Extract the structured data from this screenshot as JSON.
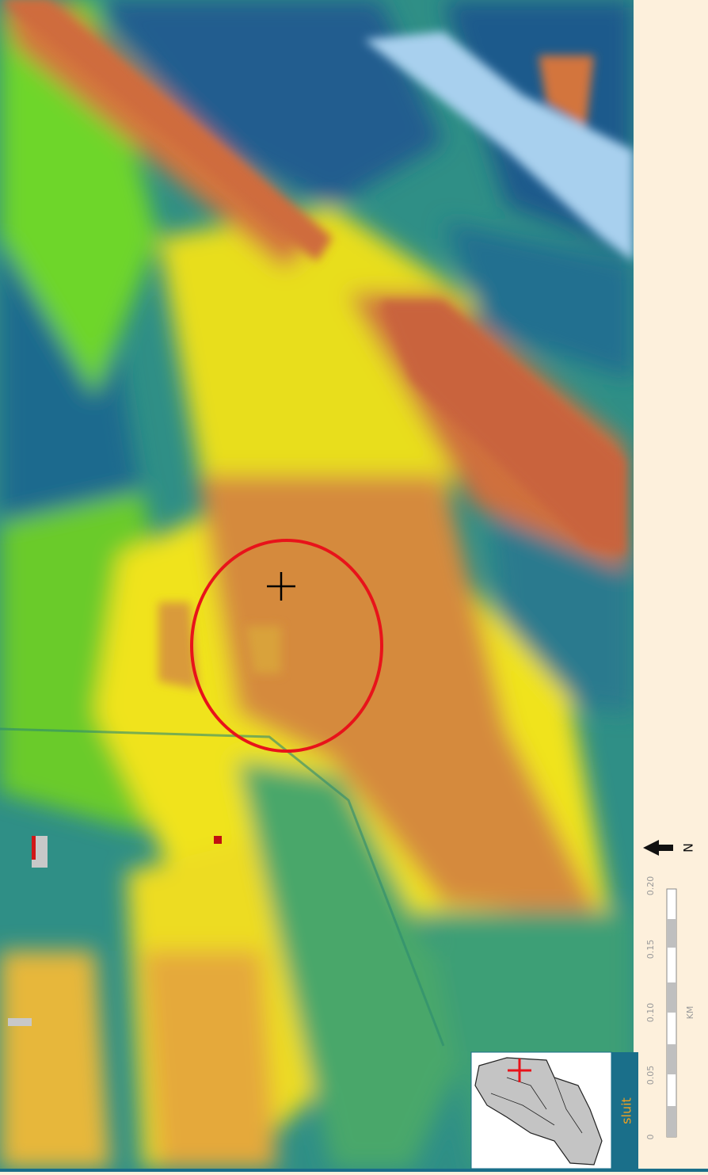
{
  "scale_bar": {
    "ticks": [
      "0",
      "0.05",
      "0.10",
      "0.15",
      "0.20"
    ],
    "unit": "KM"
  },
  "north_label": "N",
  "close_button": "sluit"
}
